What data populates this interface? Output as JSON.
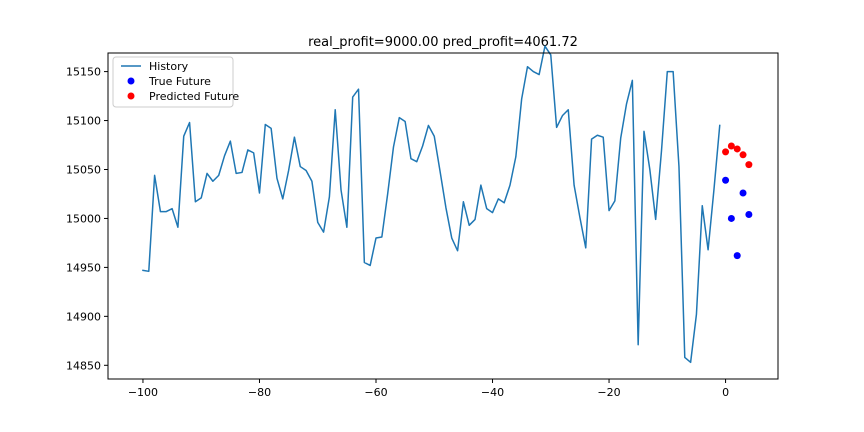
{
  "chart_data": {
    "type": "line",
    "title": "real_profit=9000.00 pred_profit=4061.72",
    "xlabel": "",
    "ylabel": "",
    "xlim": [
      -106,
      9
    ],
    "ylim": [
      14836,
      15169
    ],
    "xticks": [
      -100,
      -80,
      -60,
      -40,
      -20,
      0
    ],
    "yticks": [
      14850,
      14900,
      14950,
      15000,
      15050,
      15100,
      15150
    ],
    "xtick_labels": [
      "−100",
      "−80",
      "−60",
      "−40",
      "−20",
      "0"
    ],
    "ytick_labels": [
      "14850",
      "14900",
      "14950",
      "15000",
      "15050",
      "15100",
      "15150"
    ],
    "grid": false,
    "legend_position": "top-left",
    "series": [
      {
        "name": "History",
        "kind": "line",
        "color": "#1f77b4",
        "x": [
          -100,
          -99,
          -98,
          -97,
          -96,
          -95,
          -94,
          -93,
          -92,
          -91,
          -90,
          -89,
          -88,
          -87,
          -86,
          -85,
          -84,
          -83,
          -82,
          -81,
          -80,
          -79,
          -78,
          -77,
          -76,
          -75,
          -74,
          -73,
          -72,
          -71,
          -70,
          -69,
          -68,
          -67,
          -66,
          -65,
          -64,
          -63,
          -62,
          -61,
          -60,
          -59,
          -58,
          -57,
          -56,
          -55,
          -54,
          -53,
          -52,
          -51,
          -50,
          -49,
          -48,
          -47,
          -46,
          -45,
          -44,
          -43,
          -42,
          -41,
          -40,
          -39,
          -38,
          -37,
          -36,
          -35,
          -34,
          -33,
          -32,
          -31,
          -30,
          -29,
          -28,
          -27,
          -26,
          -25,
          -24,
          -23,
          -22,
          -21,
          -20,
          -19,
          -18,
          -17,
          -16,
          -15,
          -14,
          -13,
          -12,
          -11,
          -10,
          -9,
          -8,
          -7,
          -6,
          -5,
          -4,
          -3,
          -2,
          -1
        ],
        "y": [
          14947,
          14946,
          15044,
          15007,
          15007,
          15010,
          14991,
          15084,
          15098,
          15017,
          15021,
          15046,
          15038,
          15044,
          15064,
          15079,
          15046,
          15047,
          15070,
          15067,
          15026,
          15096,
          15092,
          15041,
          15020,
          15049,
          15083,
          15053,
          15049,
          15038,
          14996,
          14986,
          15022,
          15111,
          15029,
          14991,
          15124,
          15132,
          14955,
          14952,
          14980,
          14981,
          15025,
          15073,
          15103,
          15099,
          15061,
          15058,
          15074,
          15095,
          15084,
          15048,
          15011,
          14980,
          14967,
          15017,
          14993,
          14999,
          15034,
          15010,
          15006,
          15020,
          15016,
          15034,
          15063,
          15122,
          15155,
          15150,
          15147,
          15176,
          15167,
          15093,
          15105,
          15111,
          15034,
          15001,
          14970,
          15081,
          15085,
          15083,
          15008,
          15018,
          15082,
          15117,
          15141,
          14871,
          15089,
          15050,
          14999,
          15069,
          15150,
          15150,
          15053,
          14858,
          14853,
          14902,
          15013,
          14968,
          15029,
          15095
        ]
      },
      {
        "name": "True Future",
        "kind": "scatter",
        "color": "#0000ff",
        "x": [
          0,
          1,
          2,
          3,
          4
        ],
        "y": [
          15039,
          15000,
          14962,
          15026,
          15004
        ]
      },
      {
        "name": "Predicted Future",
        "kind": "scatter",
        "color": "#ff0000",
        "x": [
          0,
          1,
          2,
          3,
          4
        ],
        "y": [
          15068,
          15074,
          15071,
          15065,
          15055
        ]
      }
    ]
  }
}
